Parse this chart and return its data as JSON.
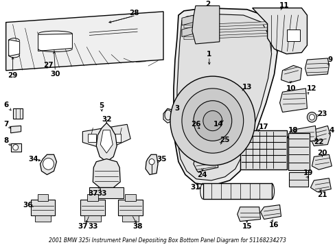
{
  "title": "2001 BMW 325i Instrument Panel Depositing Box Bottom Panel Diagram for 51168234273",
  "background_color": "#ffffff",
  "fig_width": 4.89,
  "fig_height": 3.6,
  "dpi": 100,
  "text_color": "#000000",
  "line_color": "#000000",
  "part_fontsize": 7.5,
  "title_fontsize": 5.5,
  "lw": 0.7
}
